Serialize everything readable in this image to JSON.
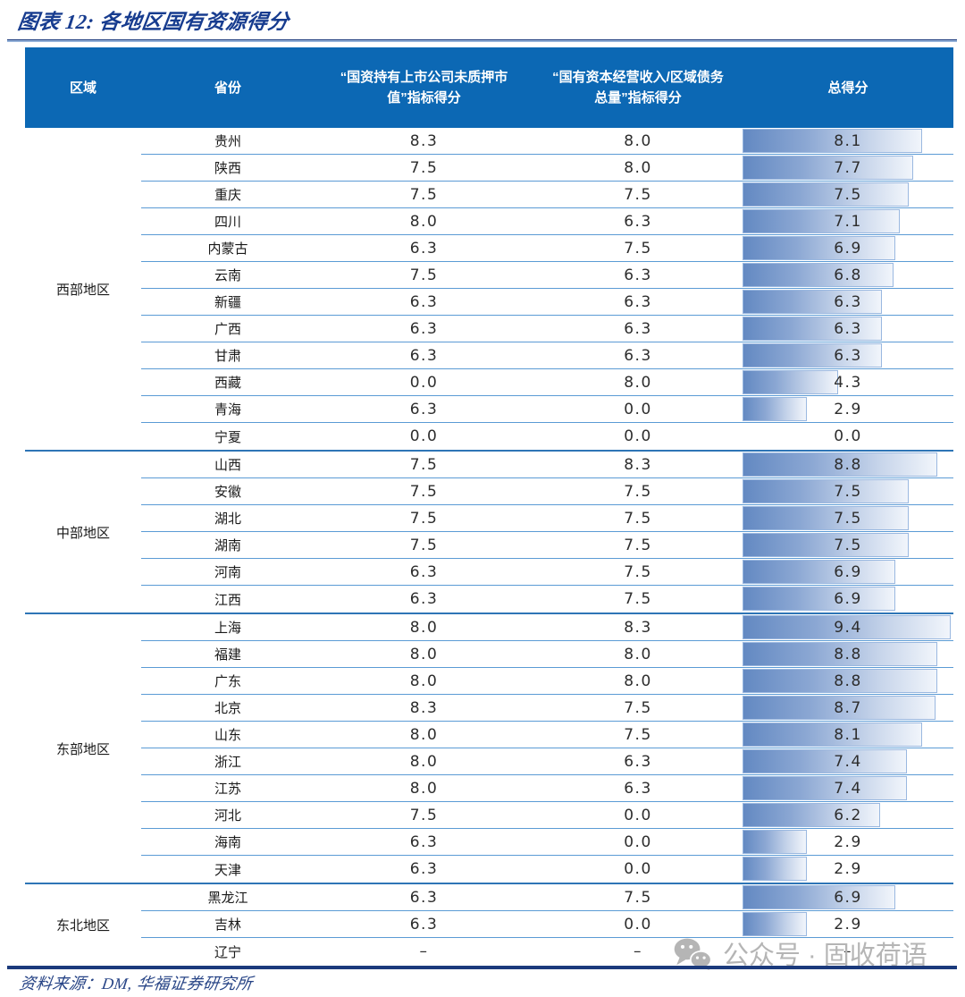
{
  "title": "图表 12: 各地区国有资源得分",
  "source_note": "资料来源：DM, 华福证券研究所",
  "watermark": {
    "icon": "wechat-icon",
    "text": "公众号 · 固收荷语"
  },
  "colors": {
    "title_blue": "#173c8f",
    "header_bg": "#0c68b4",
    "row_line": "#5b9bd5",
    "group_line": "#2e75b6",
    "bar_gradient_start": "#6389c2",
    "bar_gradient_end": "#f1f5fb",
    "bar_border": "#9ab8e0",
    "rule_navy": "#1b3a7c",
    "watermark_gray": "#b5b5b5"
  },
  "chart_data": {
    "type": "table",
    "title": "各地区国有资源得分",
    "columns": [
      "区域",
      "省份",
      "“国资持有上市公司未质押市\n值”指标得分",
      "“国有资本经营收入/区域债务\n总量”指标得分",
      "总得分"
    ],
    "bar_column": "总得分",
    "bar_max_value": 9.4,
    "groups": [
      {
        "region": "西部地区",
        "rows": [
          [
            "贵州",
            "8.3",
            "8.0",
            "8.1"
          ],
          [
            "陕西",
            "7.5",
            "8.0",
            "7.7"
          ],
          [
            "重庆",
            "7.5",
            "7.5",
            "7.5"
          ],
          [
            "四川",
            "8.0",
            "6.3",
            "7.1"
          ],
          [
            "内蒙古",
            "6.3",
            "7.5",
            "6.9"
          ],
          [
            "云南",
            "7.5",
            "6.3",
            "6.8"
          ],
          [
            "新疆",
            "6.3",
            "6.3",
            "6.3"
          ],
          [
            "广西",
            "6.3",
            "6.3",
            "6.3"
          ],
          [
            "甘肃",
            "6.3",
            "6.3",
            "6.3"
          ],
          [
            "西藏",
            "0.0",
            "8.0",
            "4.3"
          ],
          [
            "青海",
            "6.3",
            "0.0",
            "2.9"
          ],
          [
            "宁夏",
            "0.0",
            "0.0",
            "0.0"
          ]
        ]
      },
      {
        "region": "中部地区",
        "rows": [
          [
            "山西",
            "7.5",
            "8.3",
            "8.8"
          ],
          [
            "安徽",
            "7.5",
            "7.5",
            "7.5"
          ],
          [
            "湖北",
            "7.5",
            "7.5",
            "7.5"
          ],
          [
            "湖南",
            "7.5",
            "7.5",
            "7.5"
          ],
          [
            "河南",
            "6.3",
            "7.5",
            "6.9"
          ],
          [
            "江西",
            "6.3",
            "7.5",
            "6.9"
          ]
        ]
      },
      {
        "region": "东部地区",
        "rows": [
          [
            "上海",
            "8.0",
            "8.3",
            "9.4"
          ],
          [
            "福建",
            "8.0",
            "8.0",
            "8.8"
          ],
          [
            "广东",
            "8.0",
            "8.0",
            "8.8"
          ],
          [
            "北京",
            "8.3",
            "7.5",
            "8.7"
          ],
          [
            "山东",
            "8.0",
            "7.5",
            "8.1"
          ],
          [
            "浙江",
            "8.0",
            "6.3",
            "7.4"
          ],
          [
            "江苏",
            "8.0",
            "6.3",
            "7.4"
          ],
          [
            "河北",
            "7.5",
            "0.0",
            "6.2"
          ],
          [
            "海南",
            "6.3",
            "0.0",
            "2.9"
          ],
          [
            "天津",
            "6.3",
            "0.0",
            "2.9"
          ]
        ]
      },
      {
        "region": "东北地区",
        "rows": [
          [
            "黑龙江",
            "6.3",
            "7.5",
            "6.9"
          ],
          [
            "吉林",
            "6.3",
            "0.0",
            "2.9"
          ],
          [
            "辽宁",
            "–",
            "–",
            "–"
          ]
        ]
      }
    ]
  }
}
